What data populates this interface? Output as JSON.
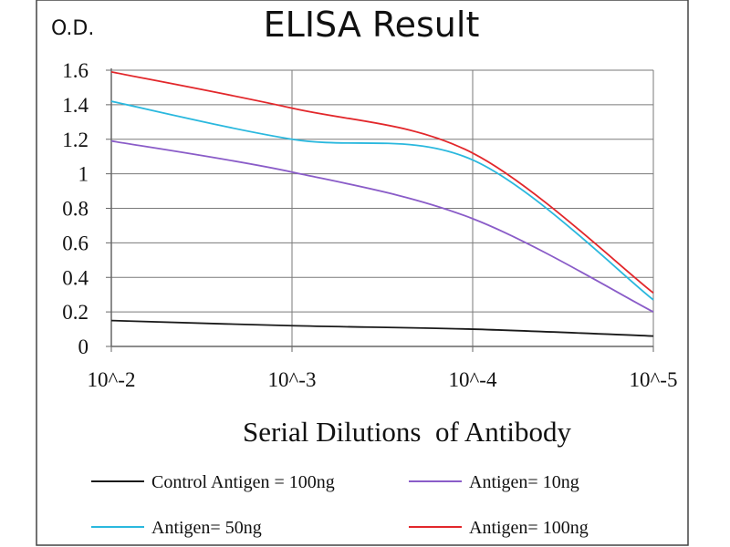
{
  "chart_data": {
    "type": "line",
    "title": "ELISA Result",
    "ylabel": "O.D.",
    "xlabel": "Serial Dilutions  of Antibody",
    "categories": [
      "10^-2",
      "10^-3",
      "10^-4",
      "10^-5"
    ],
    "ylim": [
      0,
      1.6
    ],
    "yticks": [
      "0",
      "0.2",
      "0.4",
      "0.6",
      "0.8",
      "1",
      "1.2",
      "1.4",
      "1.6"
    ],
    "grid": true,
    "legend_position": "bottom",
    "series": [
      {
        "name": "Control Antigen = 100ng",
        "color": "#1a1a1a",
        "values": [
          0.15,
          0.12,
          0.1,
          0.06
        ]
      },
      {
        "name": "Antigen= 10ng",
        "color": "#8a5cc8",
        "values": [
          1.19,
          1.01,
          0.74,
          0.2
        ]
      },
      {
        "name": "Antigen= 50ng",
        "color": "#2ab8de",
        "values": [
          1.42,
          1.2,
          1.08,
          0.27
        ]
      },
      {
        "name": "Antigen= 100ng",
        "color": "#e2272b",
        "values": [
          1.59,
          1.38,
          1.12,
          0.31
        ]
      }
    ]
  }
}
